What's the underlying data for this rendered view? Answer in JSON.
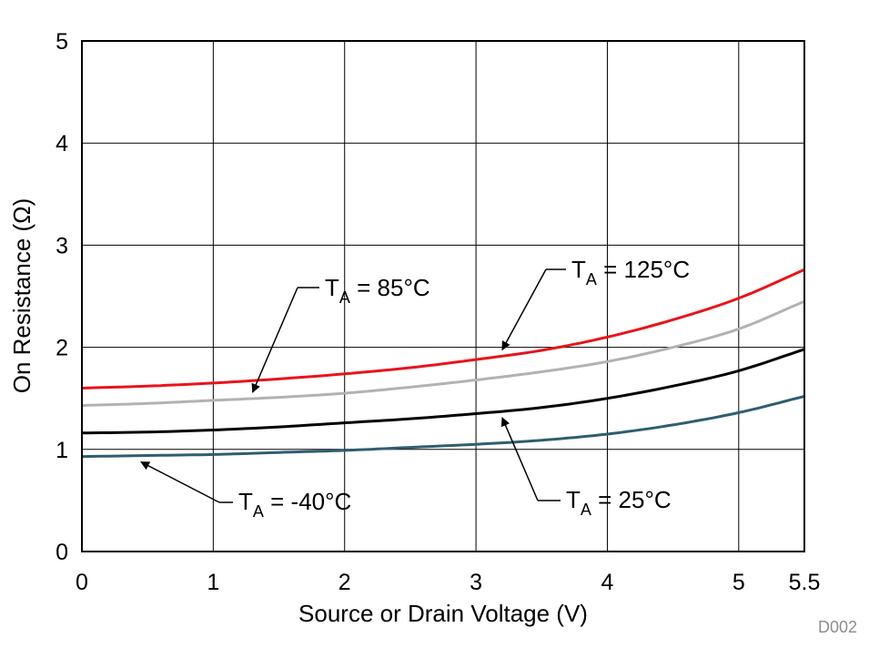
{
  "chart_data": {
    "type": "line",
    "title": "",
    "xlabel": "Source or Drain Voltage (V)",
    "ylabel": "On Resistance (Ω)",
    "xlim": [
      0,
      5.5
    ],
    "ylim": [
      0,
      5
    ],
    "xticks": [
      0,
      1,
      2,
      3,
      4,
      5,
      5.5
    ],
    "xtick_labels": [
      "0",
      "1",
      "2",
      "3",
      "4",
      "5",
      "5.5"
    ],
    "yticks": [
      0,
      1,
      2,
      3,
      4,
      5
    ],
    "ytick_labels": [
      "0",
      "1",
      "2",
      "3",
      "4",
      "5"
    ],
    "grid": true,
    "x": [
      0,
      0.5,
      1,
      1.5,
      2,
      2.5,
      3,
      3.5,
      4,
      4.5,
      5,
      5.5
    ],
    "series": [
      {
        "name": "TA = 125°C",
        "color": "#e8141b",
        "values": [
          1.6,
          1.62,
          1.65,
          1.69,
          1.74,
          1.8,
          1.88,
          1.97,
          2.1,
          2.27,
          2.48,
          2.76
        ]
      },
      {
        "name": "TA = 85°C",
        "color": "#b2b2b2",
        "values": [
          1.43,
          1.45,
          1.48,
          1.51,
          1.55,
          1.61,
          1.68,
          1.76,
          1.86,
          2.0,
          2.18,
          2.45
        ]
      },
      {
        "name": "TA = 25°C",
        "color": "#000000",
        "values": [
          1.16,
          1.17,
          1.19,
          1.22,
          1.26,
          1.3,
          1.35,
          1.41,
          1.5,
          1.62,
          1.77,
          1.98
        ]
      },
      {
        "name": "TA = -40°C",
        "color": "#2f5d70",
        "values": [
          0.93,
          0.94,
          0.95,
          0.97,
          0.99,
          1.02,
          1.05,
          1.09,
          1.15,
          1.24,
          1.36,
          1.52
        ]
      }
    ],
    "annotations": [
      {
        "main": "T",
        "sub": "A",
        "rest": " = 85°C",
        "series": "TA = 85°C",
        "points_to_x": 1.3
      },
      {
        "main": "T",
        "sub": "A",
        "rest": " = 125°C",
        "series": "TA = 125°C",
        "points_to_x": 3.2
      },
      {
        "main": "T",
        "sub": "A",
        "rest": " = -40°C",
        "series": "TA = -40°C",
        "points_to_x": 0.45
      },
      {
        "main": "T",
        "sub": "A",
        "rest": " = 25°C",
        "series": "TA = 25°C",
        "points_to_x": 3.2
      }
    ],
    "figure_id": "D002"
  }
}
